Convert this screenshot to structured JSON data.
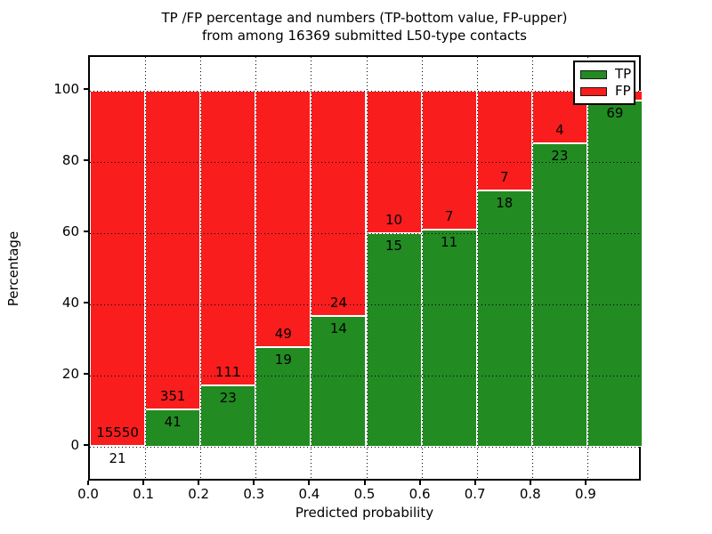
{
  "title": {
    "line1": "TP /FP percentage and numbers (TP-bottom value, FP-upper)",
    "line2": "from among 16369 submitted L50-type contacts"
  },
  "chart_data": {
    "type": "bar",
    "stacked": true,
    "title": "TP /FP percentage and numbers (TP-bottom value, FP-upper) from among 16369 submitted L50-type contacts",
    "xlabel": "Predicted probability",
    "ylabel": "Percentage",
    "total_contacts": 16369,
    "xlim": [
      0.0,
      1.0
    ],
    "ylim": [
      -9.5,
      109.5
    ],
    "x_tick_labels": [
      "0.0",
      "0.1",
      "0.2",
      "0.3",
      "0.4",
      "0.5",
      "0.6",
      "0.7",
      "0.8",
      "0.9"
    ],
    "y_tick_values": [
      0,
      20,
      40,
      60,
      80,
      100
    ],
    "grid": true,
    "legend_position": "upper right",
    "legend": [
      {
        "label": "TP",
        "color": "#228b22"
      },
      {
        "label": "FP",
        "color": "#f91d1d"
      }
    ],
    "colors": {
      "tp": "#228b22",
      "fp": "#f91d1d",
      "bar_edge": "#ffffff",
      "grid": "#000000"
    },
    "series": [
      {
        "name": "TP",
        "values": [
          21,
          41,
          23,
          19,
          14,
          15,
          11,
          18,
          23,
          69
        ]
      },
      {
        "name": "FP",
        "values": [
          15550,
          351,
          111,
          49,
          24,
          10,
          7,
          7,
          4,
          null
        ]
      }
    ],
    "bins": [
      {
        "x0": 0.0,
        "x1": 0.1,
        "tp_label": "21",
        "fp_label": "15550",
        "tp_pct": 0.13
      },
      {
        "x0": 0.1,
        "x1": 0.2,
        "tp_label": "41",
        "fp_label": "351",
        "tp_pct": 10.5
      },
      {
        "x0": 0.2,
        "x1": 0.3,
        "tp_label": "23",
        "fp_label": "111",
        "tp_pct": 17.2
      },
      {
        "x0": 0.3,
        "x1": 0.4,
        "tp_label": "19",
        "fp_label": "49",
        "tp_pct": 27.9
      },
      {
        "x0": 0.4,
        "x1": 0.5,
        "tp_label": "14",
        "fp_label": "24",
        "tp_pct": 36.8
      },
      {
        "x0": 0.5,
        "x1": 0.6,
        "tp_label": "15",
        "fp_label": "10",
        "tp_pct": 60.0
      },
      {
        "x0": 0.6,
        "x1": 0.7,
        "tp_label": "11",
        "fp_label": "7",
        "tp_pct": 61.1
      },
      {
        "x0": 0.7,
        "x1": 0.8,
        "tp_label": "18",
        "fp_label": "7",
        "tp_pct": 72.0
      },
      {
        "x0": 0.8,
        "x1": 0.9,
        "tp_label": "23",
        "fp_label": "4",
        "tp_pct": 85.2
      },
      {
        "x0": 0.9,
        "x1": 1.0,
        "tp_label": "69",
        "fp_label": "",
        "tp_pct": 97.2
      }
    ]
  }
}
